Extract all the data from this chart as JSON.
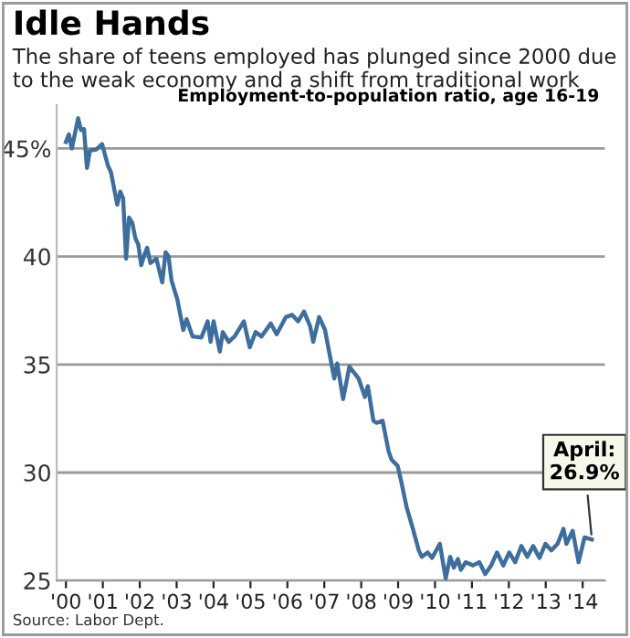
{
  "chart_data": {
    "type": "line",
    "title": "Idle Hands",
    "subtitle": "The share of teens employed has plunged since 2000 due to the weak economy and a shift from traditional work",
    "ylabel": "Employment-to-population ratio, age 16-19",
    "x": [
      2000.0,
      2000.08,
      2000.16,
      2000.33,
      2000.41,
      2000.49,
      2000.57,
      2000.65,
      2000.82,
      2000.98,
      2001.14,
      2001.22,
      2001.39,
      2001.47,
      2001.55,
      2001.63,
      2001.71,
      2001.8,
      2001.88,
      2001.96,
      2002.04,
      2002.13,
      2002.2,
      2002.29,
      2002.45,
      2002.61,
      2002.7,
      2002.78,
      2002.86,
      2003.02,
      2003.18,
      2003.27,
      2003.43,
      2003.67,
      2003.84,
      2003.92,
      2004.0,
      2004.17,
      2004.25,
      2004.41,
      2004.57,
      2004.82,
      2004.98,
      2005.14,
      2005.3,
      2005.55,
      2005.71,
      2005.96,
      2006.13,
      2006.29,
      2006.45,
      2006.62,
      2006.7,
      2006.86,
      2007.02,
      2007.19,
      2007.27,
      2007.35,
      2007.51,
      2007.68,
      2007.93,
      2008.1,
      2008.18,
      2008.33,
      2008.42,
      2008.58,
      2008.74,
      2008.82,
      2008.99,
      2009.07,
      2009.23,
      2009.4,
      2009.56,
      2009.64,
      2009.8,
      2009.92,
      2010.13,
      2010.29,
      2010.41,
      2010.51,
      2010.62,
      2010.7,
      2010.83,
      2011.03,
      2011.2,
      2011.36,
      2011.52,
      2011.68,
      2011.85,
      2012.01,
      2012.17,
      2012.34,
      2012.5,
      2012.66,
      2012.83,
      2012.99,
      2013.15,
      2013.32,
      2013.48,
      2013.56,
      2013.73,
      2013.89,
      2014.05,
      2014.25
    ],
    "series": [
      {
        "color": "#3d6e9e",
        "values": [
          45.3,
          45.65,
          45.0,
          46.4,
          45.85,
          45.9,
          44.1,
          44.9,
          44.95,
          45.2,
          44.2,
          43.9,
          42.4,
          43.0,
          42.7,
          39.9,
          41.8,
          41.55,
          40.85,
          40.56,
          39.6,
          40.1,
          40.4,
          39.7,
          39.9,
          38.8,
          40.2,
          40.0,
          38.9,
          38.0,
          36.6,
          37.1,
          36.3,
          36.25,
          37.0,
          36.05,
          37.0,
          35.6,
          36.5,
          36.05,
          36.3,
          37.0,
          35.8,
          36.5,
          36.3,
          36.9,
          36.4,
          37.2,
          37.3,
          37.0,
          37.45,
          36.75,
          36.05,
          37.2,
          36.6,
          35.06,
          34.35,
          35.05,
          33.4,
          34.9,
          34.35,
          33.5,
          34.0,
          32.4,
          32.3,
          32.4,
          31.0,
          30.6,
          30.3,
          29.7,
          28.4,
          27.4,
          26.4,
          26.1,
          26.3,
          26.05,
          26.7,
          25.1,
          26.1,
          25.6,
          26.0,
          25.5,
          25.85,
          25.7,
          25.85,
          25.3,
          25.7,
          26.3,
          25.7,
          26.3,
          25.85,
          26.6,
          26.1,
          26.6,
          26.05,
          26.7,
          26.4,
          26.7,
          27.4,
          26.7,
          27.3,
          25.85,
          27.0,
          26.9
        ]
      }
    ],
    "xlim": [
      1999.75,
      2014.6
    ],
    "xticks": [
      {
        "value": 2000,
        "label": "'00"
      },
      {
        "value": 2001,
        "label": "'01"
      },
      {
        "value": 2002,
        "label": "'02"
      },
      {
        "value": 2003,
        "label": "'03"
      },
      {
        "value": 2004,
        "label": "'04"
      },
      {
        "value": 2005,
        "label": "'05"
      },
      {
        "value": 2006,
        "label": "'06"
      },
      {
        "value": 2007,
        "label": "'07"
      },
      {
        "value": 2008,
        "label": "'08"
      },
      {
        "value": 2009,
        "label": "'09"
      },
      {
        "value": 2010,
        "label": "'10"
      },
      {
        "value": 2011,
        "label": "'11"
      },
      {
        "value": 2012,
        "label": "'12"
      },
      {
        "value": 2013,
        "label": "'13"
      },
      {
        "value": 2014,
        "label": "'14"
      }
    ],
    "ylim": [
      25,
      47
    ],
    "yticks": [
      25,
      30,
      35,
      40,
      {
        "value": 45,
        "label": "45%"
      }
    ],
    "grid": "y",
    "marker": "none",
    "line_style": "solid",
    "annotations": [
      {
        "text": "April:\n26.9%",
        "x": 2014.25,
        "y": 26.9
      },
      "Source: Labor Dept."
    ]
  }
}
